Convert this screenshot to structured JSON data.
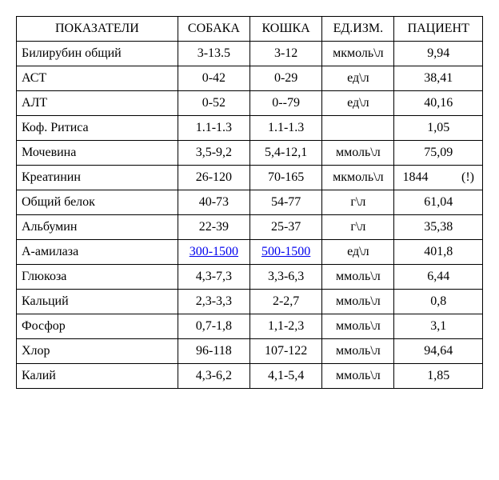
{
  "header": {
    "indicator": "ПОКАЗАТЕЛИ",
    "dog": "СОБАКА",
    "cat": "КОШКА",
    "unit": "ЕД.ИЗМ.",
    "patient": "ПАЦИЕНТ"
  },
  "rows": [
    {
      "indicator": "Билирубин общий",
      "dog": "3-13.5",
      "cat": "3-12",
      "unit": "мкмоль\\л",
      "patient": "9,94"
    },
    {
      "indicator": "АСТ",
      "dog": "0-42",
      "cat": "0-29",
      "unit": "ед\\л",
      "patient": "38,41"
    },
    {
      "indicator": "АЛТ",
      "dog": "0-52",
      "cat": "0--79",
      "unit": "ед\\л",
      "patient": "40,16"
    },
    {
      "indicator": "Коф. Ритиса",
      "dog": "1.1-1.3",
      "cat": "1.1-1.3",
      "unit": "",
      "patient": "1,05"
    },
    {
      "indicator": "Мочевина",
      "dog": "3,5-9,2",
      "cat": "5,4-12,1",
      "unit": "ммоль\\л",
      "patient": "75,09"
    },
    {
      "indicator": "Креатинин",
      "dog": "26-120",
      "cat": "70-165",
      "unit": "мкмоль\\л",
      "patient_val": "1844",
      "patient_flag": "(!)",
      "special": true
    },
    {
      "indicator": "Общий белок",
      "dog": "40-73",
      "cat": "54-77",
      "unit": "г\\л",
      "patient": "61,04"
    },
    {
      "indicator": "Альбумин",
      "dog": "22-39",
      "cat": "25-37",
      "unit": "г\\л",
      "patient": "35,38"
    },
    {
      "indicator": "А-амилаза",
      "dog": "300-1500",
      "cat": "500-1500",
      "unit": "ед\\л",
      "patient": "401,8",
      "linked": true
    },
    {
      "indicator": "Глюкоза",
      "dog": "4,3-7,3",
      "cat": "3,3-6,3",
      "unit": "ммоль\\л",
      "patient": "6,44"
    },
    {
      "indicator": "Кальций",
      "dog": "2,3-3,3",
      "cat": "2-2,7",
      "unit": "ммоль\\л",
      "patient": "0,8"
    },
    {
      "indicator": "Фосфор",
      "dog": "0,7-1,8",
      "cat": "1,1-2,3",
      "unit": "ммоль\\л",
      "patient": "3,1"
    },
    {
      "indicator": "Хлор",
      "dog": "96-118",
      "cat": "107-122",
      "unit": "ммоль\\л",
      "patient": "94,64"
    },
    {
      "indicator": "Калий",
      "dog": "4,3-6,2",
      "cat": "4,1-5,4",
      "unit": "ммоль\\л",
      "patient": "1,85"
    }
  ]
}
